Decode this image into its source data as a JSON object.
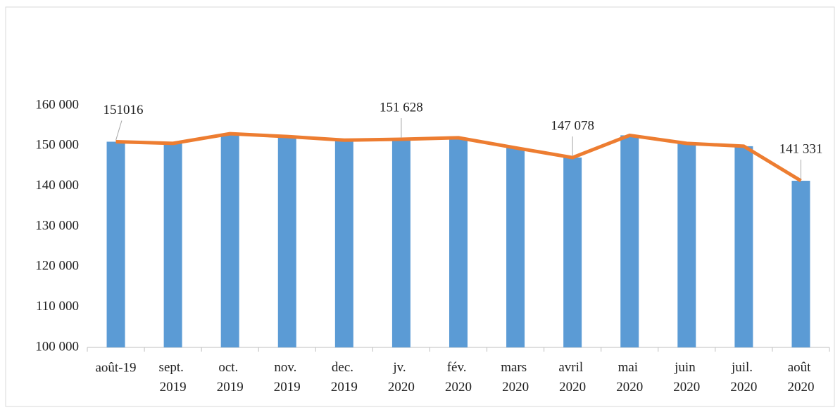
{
  "chart_data": {
    "type": "combo",
    "categories": [
      "août-19",
      "sept. 2019",
      "oct. 2019",
      "nov. 2019",
      "dec. 2019",
      "jv. 2020",
      "fév. 2020",
      "mars 2020",
      "avril 2020",
      "mai 2020",
      "juin 2020",
      "juil. 2020",
      "août 2020"
    ],
    "values": [
      151016,
      150600,
      153000,
      152300,
      151400,
      151628,
      152000,
      149500,
      147078,
      152600,
      150600,
      149900,
      141331
    ],
    "value_labels": [
      "151016",
      null,
      null,
      null,
      null,
      "151 628",
      null,
      null,
      "147 078",
      null,
      null,
      null,
      "141 331"
    ],
    "color": "#5b9bd5",
    "line_color": "#ed7d31",
    "ylim": [
      100000,
      160000
    ],
    "yticks": [
      {
        "value": 100000,
        "label": "100 000"
      },
      {
        "value": 110000,
        "label": "110 000"
      },
      {
        "value": 120000,
        "label": "120 000"
      },
      {
        "value": 130000,
        "label": "130 000"
      },
      {
        "value": 140000,
        "label": "140 000"
      },
      {
        "value": 150000,
        "label": "150 000"
      },
      {
        "value": 160000,
        "label": "160 000"
      }
    ],
    "grid": false
  }
}
